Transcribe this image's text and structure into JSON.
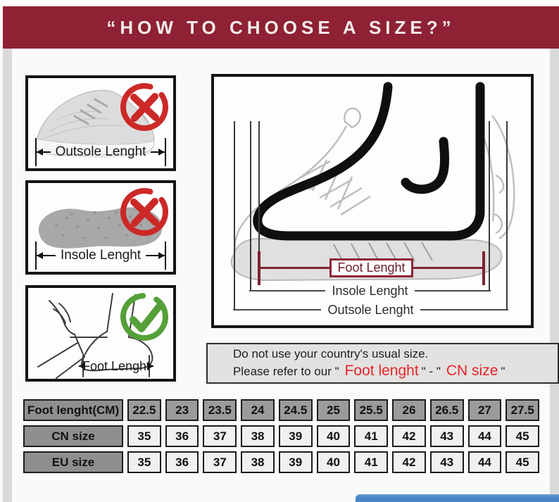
{
  "banner": {
    "title": "“HOW TO CHOOSE A SIZE?”"
  },
  "left_panels": [
    {
      "label": "Outsole Lenght",
      "mark": "wrong",
      "illustration": "sneaker"
    },
    {
      "label": "Insole Lenght",
      "mark": "wrong",
      "illustration": "insole"
    },
    {
      "label": "Foot Lenght",
      "mark": "correct",
      "illustration": "foot-measuring"
    }
  ],
  "diagram": {
    "foot_label": "Foot Lenght",
    "insole_label": "Insole Lenght",
    "outsole_label": "Outsole Lenght"
  },
  "note": {
    "line1": "Do not use your country's usual size.",
    "line2": {
      "prefix": "Please refer to our \"",
      "red_foot": "Foot lenght",
      "separator": "\" - \"",
      "red_cn": "CN size",
      "suffix": "\""
    }
  },
  "size_table": {
    "rows": [
      {
        "header": "Foot lenght(CM)",
        "tone": "gray",
        "values": [
          "22.5",
          "23",
          "23.5",
          "24",
          "24.5",
          "25",
          "25.5",
          "26",
          "26.5",
          "27",
          "27.5"
        ]
      },
      {
        "header": "CN size",
        "tone": "light",
        "values": [
          "35",
          "36",
          "37",
          "38",
          "39",
          "40",
          "41",
          "42",
          "43",
          "44",
          "45"
        ]
      },
      {
        "header": "EU size",
        "tone": "light",
        "values": [
          "35",
          "36",
          "37",
          "38",
          "39",
          "40",
          "41",
          "42",
          "43",
          "44",
          "45"
        ]
      }
    ]
  },
  "colors": {
    "banner_bg": "#8e2133",
    "wrong_mark_red": "#cb2927",
    "correct_mark_green": "#55a038",
    "highlight_red": "#e8252a",
    "measure_accent_maroon": "#8e2434",
    "scrollbar_blue": "#4a86c5"
  }
}
